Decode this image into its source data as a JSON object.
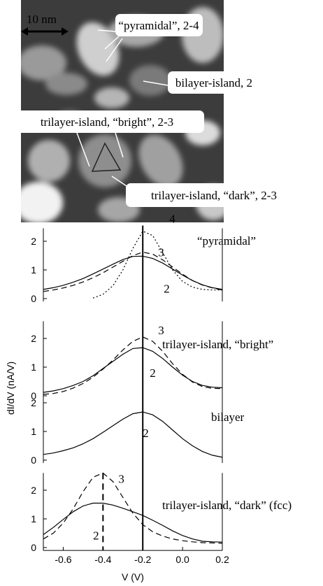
{
  "image": {
    "scale_bar": "10 nm",
    "labels": [
      "“pyramidal”, 2-4",
      "bilayer-island, 2",
      "trilayer-island, “bright”, 2-3",
      "trilayer-island, “dark”, 2-3"
    ]
  },
  "shared": {
    "ylabel": "dI/dV (nA/V)",
    "xlabel": "V (V)",
    "vline": -0.2
  },
  "chart_data": [
    {
      "type": "line",
      "title": "“pyramidal”",
      "xlim": [
        -0.7,
        0.2
      ],
      "ylim": [
        -0.1,
        2.45
      ],
      "yticks": [
        0,
        1,
        2
      ],
      "x": [
        -0.7,
        -0.65,
        -0.6,
        -0.55,
        -0.5,
        -0.45,
        -0.4,
        -0.35,
        -0.3,
        -0.25,
        -0.2,
        -0.15,
        -0.1,
        -0.05,
        0,
        0.05,
        0.1,
        0.15,
        0.2
      ],
      "series": [
        {
          "name": "2",
          "color": "#000000",
          "dash": "solid",
          "values": [
            0.32,
            0.38,
            0.46,
            0.57,
            0.7,
            0.86,
            1.03,
            1.2,
            1.36,
            1.47,
            1.48,
            1.4,
            1.24,
            1.03,
            0.82,
            0.63,
            0.48,
            0.38,
            0.32
          ]
        },
        {
          "name": "3",
          "color": "#000000",
          "dash": "dashed",
          "values": [
            0.25,
            0.3,
            0.37,
            0.46,
            0.58,
            0.73,
            0.9,
            1.1,
            1.3,
            1.5,
            1.62,
            1.55,
            1.35,
            1.1,
            0.85,
            0.63,
            0.47,
            0.37,
            0.3
          ]
        },
        {
          "name": "4",
          "color": "#000000",
          "dash": "dotted",
          "values": [
            null,
            null,
            null,
            null,
            null,
            0.02,
            0.15,
            0.45,
            1.0,
            1.75,
            2.35,
            2.2,
            1.6,
            1.0,
            0.6,
            0.4,
            0.32,
            0.3,
            0.3
          ]
        }
      ]
    },
    {
      "type": "line",
      "title": "trilayer-island, “bright”",
      "xlim": [
        -0.7,
        0.2
      ],
      "ylim": [
        -0.1,
        2.6
      ],
      "yticks": [
        0,
        1,
        2
      ],
      "x": [
        -0.7,
        -0.65,
        -0.6,
        -0.55,
        -0.5,
        -0.45,
        -0.4,
        -0.35,
        -0.3,
        -0.25,
        -0.2,
        -0.15,
        -0.1,
        -0.05,
        0,
        0.05,
        0.1,
        0.15,
        0.2
      ],
      "series": [
        {
          "name": "2",
          "color": "#000000",
          "dash": "solid",
          "values": [
            0.12,
            0.17,
            0.25,
            0.36,
            0.5,
            0.7,
            0.95,
            1.2,
            1.45,
            1.65,
            1.68,
            1.55,
            1.3,
            1.0,
            0.72,
            0.5,
            0.36,
            0.3,
            0.28
          ]
        },
        {
          "name": "3",
          "color": "#000000",
          "dash": "dashed",
          "values": [
            0.05,
            0.08,
            0.15,
            0.27,
            0.43,
            0.65,
            0.93,
            1.25,
            1.6,
            1.9,
            2.05,
            1.9,
            1.55,
            1.12,
            0.75,
            0.48,
            0.32,
            0.26,
            0.25
          ]
        }
      ]
    },
    {
      "type": "line",
      "title": "bilayer",
      "xlim": [
        -0.7,
        0.2
      ],
      "ylim": [
        -0.1,
        2.2
      ],
      "yticks": [
        0,
        1,
        2
      ],
      "x": [
        -0.7,
        -0.65,
        -0.6,
        -0.55,
        -0.5,
        -0.45,
        -0.4,
        -0.35,
        -0.3,
        -0.25,
        -0.2,
        -0.15,
        -0.1,
        -0.05,
        0,
        0.05,
        0.1,
        0.15,
        0.2
      ],
      "series": [
        {
          "name": "2",
          "color": "#000000",
          "dash": "solid",
          "values": [
            0.2,
            0.25,
            0.33,
            0.43,
            0.57,
            0.75,
            0.97,
            1.2,
            1.43,
            1.62,
            1.68,
            1.58,
            1.35,
            1.05,
            0.75,
            0.5,
            0.3,
            0.17,
            0.1
          ]
        }
      ]
    },
    {
      "type": "line",
      "title": "trilayer-island, “dark” (fcc)",
      "xlim": [
        -0.7,
        0.2
      ],
      "ylim": [
        -0.1,
        2.6
      ],
      "yticks": [
        0,
        1,
        2
      ],
      "xticks": [
        -0.6,
        -0.4,
        -0.2,
        {
          "value": 0,
          "label": "0.0"
        },
        0.2
      ],
      "vline_dashed": -0.4,
      "x": [
        -0.7,
        -0.65,
        -0.6,
        -0.55,
        -0.5,
        -0.45,
        -0.4,
        -0.35,
        -0.3,
        -0.25,
        -0.2,
        -0.15,
        -0.1,
        -0.05,
        0,
        0.05,
        0.1,
        0.15,
        0.2
      ],
      "series": [
        {
          "name": "2",
          "color": "#000000",
          "dash": "solid",
          "values": [
            0.45,
            0.7,
            0.98,
            1.25,
            1.45,
            1.55,
            1.55,
            1.48,
            1.37,
            1.25,
            1.12,
            0.95,
            0.77,
            0.58,
            0.42,
            0.3,
            0.22,
            0.2,
            0.19
          ]
        },
        {
          "name": "3",
          "color": "#000000",
          "dash": "dashed",
          "values": [
            0.3,
            0.5,
            0.85,
            1.35,
            1.95,
            2.45,
            2.6,
            2.3,
            1.75,
            1.2,
            0.8,
            0.55,
            0.4,
            0.3,
            0.24,
            0.2,
            0.17,
            0.16,
            0.15
          ]
        }
      ]
    }
  ]
}
